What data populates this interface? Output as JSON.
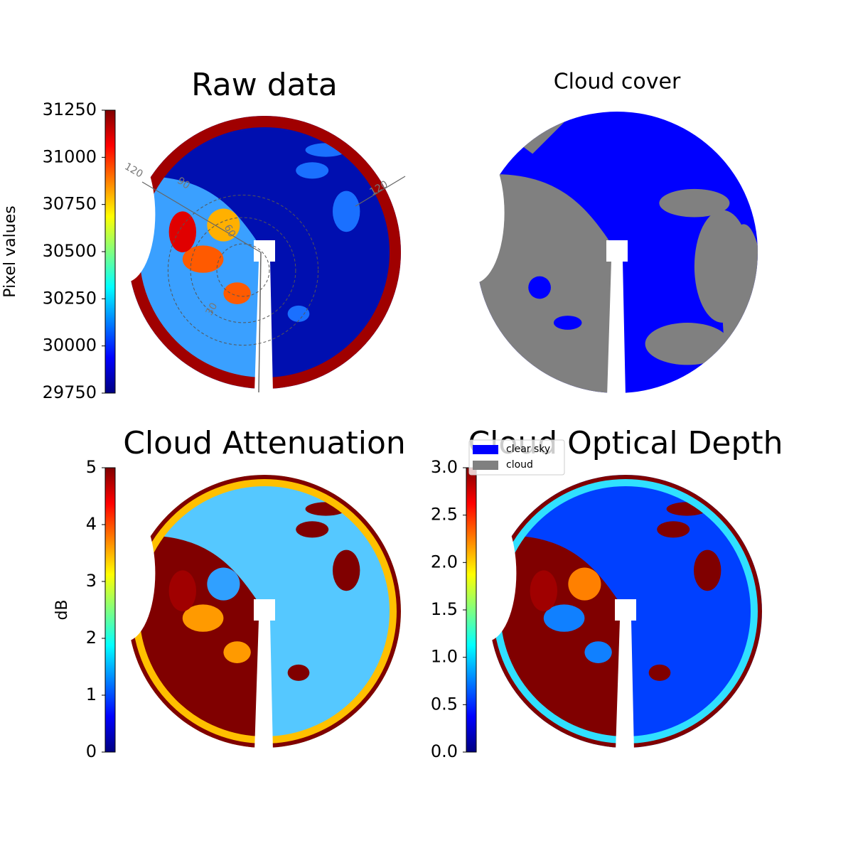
{
  "chart_data": [
    {
      "type": "image",
      "title": "Raw data",
      "colormap": "jet",
      "colorbar": {
        "label": "Pixel values",
        "lim": [
          29750,
          31250
        ],
        "ticks": [
          29750,
          30000,
          30250,
          30500,
          30750,
          31000,
          31250
        ]
      },
      "polar_labels": [
        "120",
        "90",
        "60",
        "30",
        "120"
      ]
    },
    {
      "type": "image",
      "title": "Cloud cover",
      "legend": [
        {
          "name": "clear sky",
          "color": "#0000ff"
        },
        {
          "name": "cloud",
          "color": "#808080"
        }
      ]
    },
    {
      "type": "image",
      "title": "Cloud Attenuation",
      "colormap": "jet",
      "colorbar": {
        "label": "dB",
        "lim": [
          0,
          5
        ],
        "ticks": [
          0,
          1,
          2,
          3,
          4,
          5
        ]
      }
    },
    {
      "type": "image",
      "title": "Cloud Optical Depth",
      "colormap": "jet",
      "colorbar": {
        "lim": [
          0,
          3
        ],
        "ticks": [
          {
            "value": 0,
            "label": "0.0"
          },
          0.5,
          {
            "value": 1,
            "label": "1.0"
          },
          1.5,
          {
            "value": 2,
            "label": "2.0"
          },
          2.5,
          {
            "value": 3,
            "label": "3.0"
          }
        ]
      }
    }
  ]
}
